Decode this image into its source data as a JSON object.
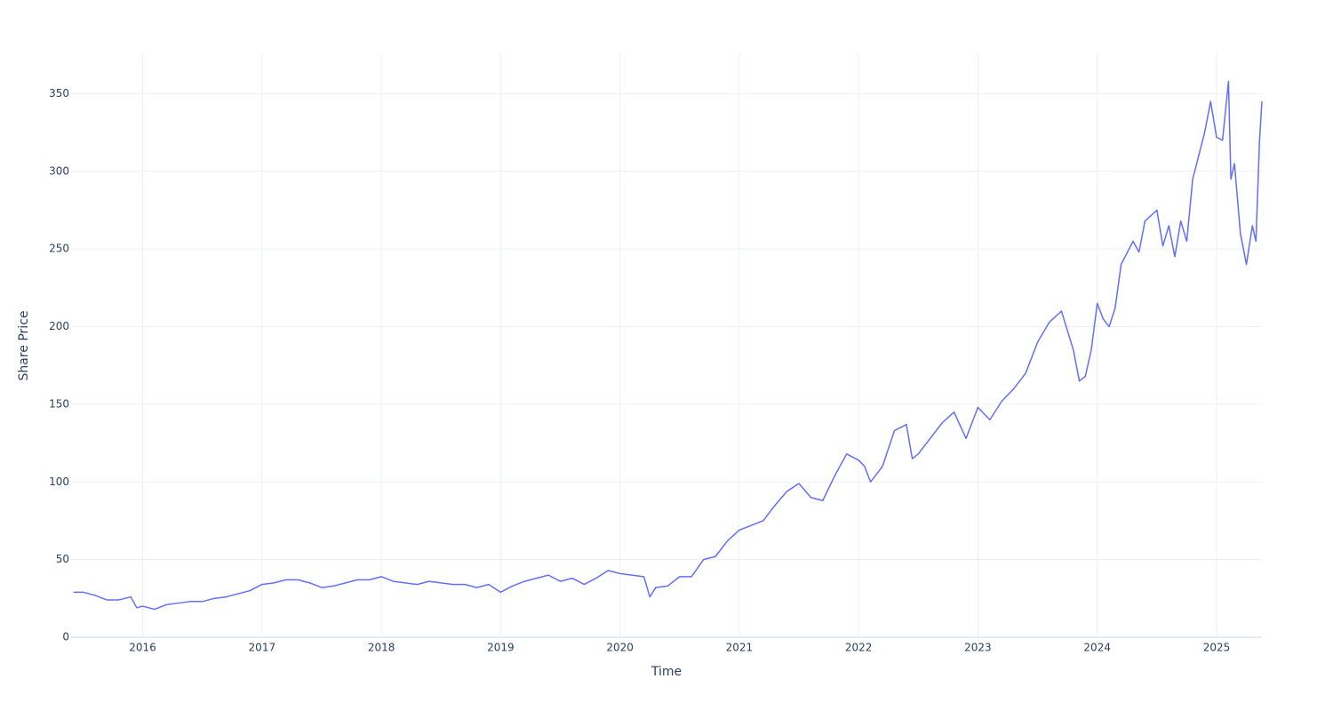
{
  "chart_data": {
    "type": "line",
    "x_label": "Time",
    "y_label": "Share Price",
    "x": [
      2015.42,
      2015.5,
      2015.6,
      2015.7,
      2015.8,
      2015.9,
      2015.95,
      2016.0,
      2016.1,
      2016.2,
      2016.3,
      2016.4,
      2016.5,
      2016.6,
      2016.7,
      2016.8,
      2016.9,
      2017.0,
      2017.1,
      2017.2,
      2017.3,
      2017.4,
      2017.5,
      2017.6,
      2017.7,
      2017.8,
      2017.9,
      2018.0,
      2018.1,
      2018.2,
      2018.3,
      2018.4,
      2018.5,
      2018.6,
      2018.7,
      2018.8,
      2018.9,
      2019.0,
      2019.1,
      2019.2,
      2019.3,
      2019.4,
      2019.5,
      2019.6,
      2019.7,
      2019.8,
      2019.9,
      2020.0,
      2020.1,
      2020.2,
      2020.25,
      2020.3,
      2020.4,
      2020.5,
      2020.6,
      2020.7,
      2020.8,
      2020.9,
      2021.0,
      2021.1,
      2021.2,
      2021.3,
      2021.4,
      2021.5,
      2021.6,
      2021.7,
      2021.8,
      2021.9,
      2022.0,
      2022.05,
      2022.1,
      2022.2,
      2022.3,
      2022.4,
      2022.45,
      2022.5,
      2022.6,
      2022.7,
      2022.8,
      2022.9,
      2023.0,
      2023.1,
      2023.2,
      2023.3,
      2023.4,
      2023.5,
      2023.6,
      2023.7,
      2023.8,
      2023.85,
      2023.9,
      2023.95,
      2024.0,
      2024.05,
      2024.1,
      2024.15,
      2024.2,
      2024.3,
      2024.35,
      2024.4,
      2024.5,
      2024.55,
      2024.6,
      2024.65,
      2024.7,
      2024.75,
      2024.8,
      2024.85,
      2024.9,
      2024.95,
      2025.0,
      2025.05,
      2025.1,
      2025.12,
      2025.15,
      2025.2,
      2025.25,
      2025.3,
      2025.33,
      2025.36,
      2025.38
    ],
    "series": [
      {
        "name": "Share Price",
        "color": "#636efa",
        "values": [
          29,
          29,
          27,
          24,
          24,
          26,
          19,
          20,
          18,
          21,
          22,
          23,
          23,
          25,
          26,
          28,
          30,
          34,
          35,
          37,
          37,
          35,
          32,
          33,
          35,
          37,
          37,
          39,
          36,
          35,
          34,
          36,
          35,
          34,
          34,
          32,
          34,
          29,
          33,
          36,
          38,
          40,
          36,
          38,
          34,
          38,
          43,
          41,
          40,
          39,
          26,
          32,
          33,
          39,
          39,
          50,
          52,
          62,
          69,
          72,
          75,
          85,
          94,
          99,
          90,
          88,
          104,
          118,
          114,
          110,
          100,
          110,
          133,
          137,
          115,
          118,
          128,
          138,
          145,
          128,
          148,
          140,
          152,
          160,
          170,
          190,
          203,
          210,
          185,
          165,
          168,
          185,
          215,
          205,
          200,
          212,
          240,
          255,
          248,
          268,
          275,
          252,
          265,
          245,
          268,
          255,
          295,
          310,
          325,
          345,
          322,
          320,
          358,
          295,
          305,
          260,
          240,
          265,
          255,
          320,
          345
        ]
      }
    ],
    "xlim": [
      2015.4,
      2025.38
    ],
    "xticks": [
      2016,
      2017,
      2018,
      2019,
      2020,
      2021,
      2022,
      2023,
      2024,
      2025
    ],
    "ylim": [
      0,
      376
    ],
    "yticks": [
      0,
      50,
      100,
      150,
      200,
      250,
      300,
      350
    ],
    "grid": true
  }
}
